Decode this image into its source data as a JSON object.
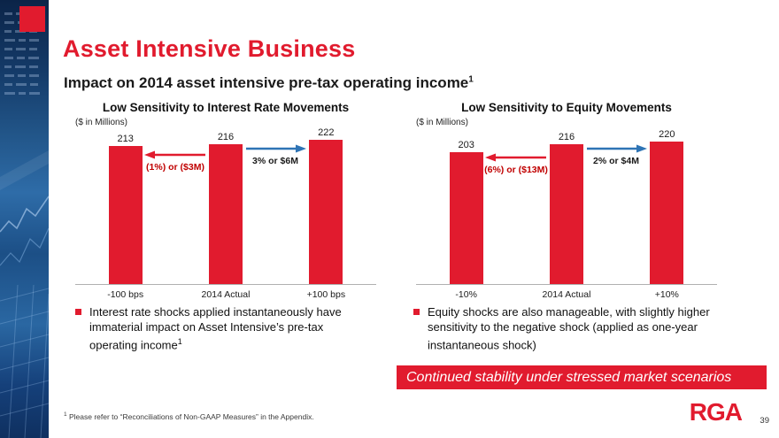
{
  "slide": {
    "title": "Asset Intensive Business",
    "subtitle": "Impact on 2014 asset intensive pre-tax operating income",
    "subtitle_sup": "1",
    "banner": "Continued stability under stressed market scenarios",
    "footnote_sup": "1",
    "footnote": " Please refer to “Reconciliations of Non-GAAP Measures” in the Appendix.",
    "logo": "RGA",
    "page_number": "39"
  },
  "colors": {
    "accent_red": "#e11b2e",
    "negative_label_red": "#c00000",
    "arrow_blue": "#2e74b5",
    "text_dark": "#1a1a1a"
  },
  "bullets": [
    {
      "text": "Interest rate shocks applied instantaneously have immaterial impact on Asset Intensive’s pre-tax operating income",
      "sup": "1"
    },
    {
      "text": "Equity shocks are also manageable, with slightly higher sensitivity to the negative shock (applied as one-year instantaneous shock)",
      "sup": ""
    }
  ],
  "chart_data": [
    {
      "type": "bar",
      "title": "Low Sensitivity to Interest Rate Movements",
      "units": "($ in Millions)",
      "categories": [
        "-100 bps",
        "2014 Actual",
        "+100 bps"
      ],
      "values": [
        213,
        216,
        222
      ],
      "bar_color": "#e11b2e",
      "xlabel": "",
      "ylabel": "",
      "ylim": [
        0,
        240
      ],
      "grid": false,
      "value_labels": true,
      "annotations": [
        {
          "label": "(1%) or ($3M)",
          "direction": "left",
          "color": "#c00000",
          "arrow_color": "#e11b2e"
        },
        {
          "label": "3% or $6M",
          "direction": "right",
          "color": "#1a1a1a",
          "arrow_color": "#2e74b5"
        }
      ]
    },
    {
      "type": "bar",
      "title": "Low Sensitivity to Equity Movements",
      "units": "($ in Millions)",
      "categories": [
        "-10%",
        "2014 Actual",
        "+10%"
      ],
      "values": [
        203,
        216,
        220
      ],
      "bar_color": "#e11b2e",
      "xlabel": "",
      "ylabel": "",
      "ylim": [
        0,
        240
      ],
      "grid": false,
      "value_labels": true,
      "annotations": [
        {
          "label": "(6%) or ($13M)",
          "direction": "left",
          "color": "#c00000",
          "arrow_color": "#e11b2e"
        },
        {
          "label": "2% or $4M",
          "direction": "right",
          "color": "#1a1a1a",
          "arrow_color": "#2e74b5"
        }
      ]
    }
  ]
}
